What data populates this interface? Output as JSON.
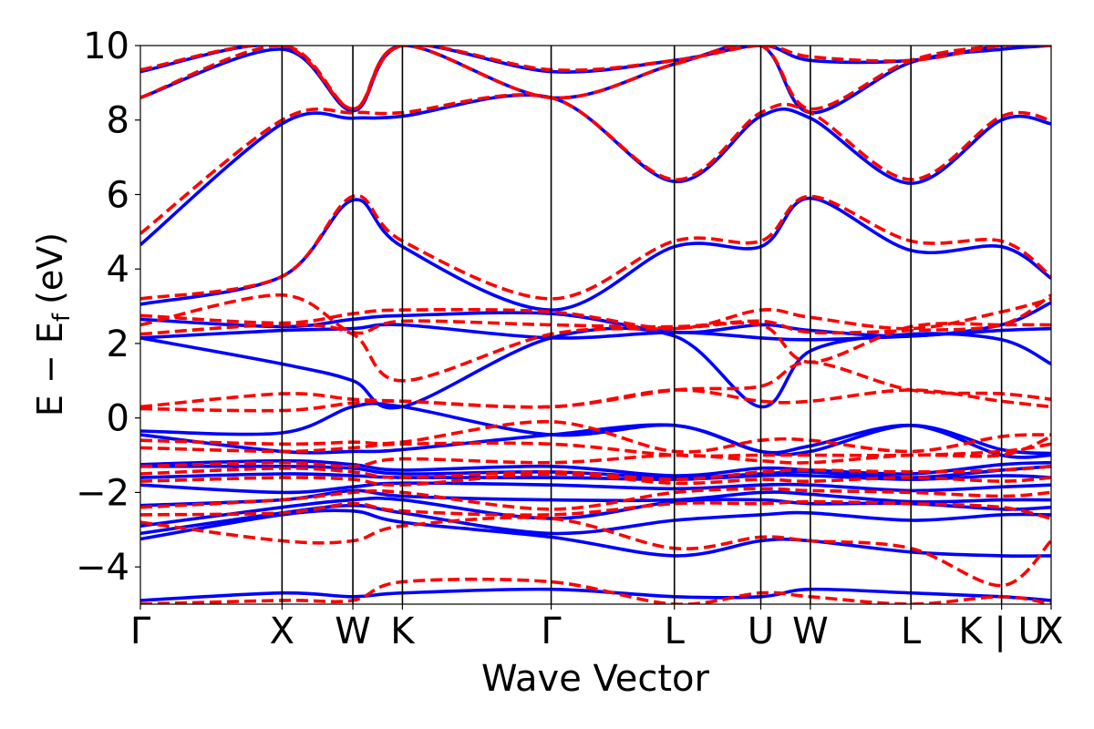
{
  "chart_data": {
    "type": "line",
    "title": "",
    "xlabel": "Wave Vector",
    "ylabel_main": "E − E",
    "ylabel_sub": "f",
    "ylabel_unit": "(eV)",
    "ylim": [
      -5,
      10
    ],
    "yticks": [
      -4,
      -2,
      0,
      2,
      4,
      6,
      8,
      10
    ],
    "ytick_labels": [
      "−4",
      "−2",
      "0",
      "2",
      "4",
      "6",
      "8",
      "10"
    ],
    "xlim": [
      0,
      6.43
    ],
    "kpoints": [
      {
        "label": "Γ",
        "x": 0.0
      },
      {
        "label": "X",
        "x": 1.0
      },
      {
        "label": "W",
        "x": 1.5
      },
      {
        "label": "K",
        "x": 1.85
      },
      {
        "label": "Γ",
        "x": 2.9
      },
      {
        "label": "L",
        "x": 3.77
      },
      {
        "label": "U",
        "x": 4.38
      },
      {
        "label": "W",
        "x": 4.73
      },
      {
        "label": "L",
        "x": 5.44
      },
      {
        "label": "K | U",
        "x": 6.08
      },
      {
        "label": "X",
        "x": 6.43
      }
    ],
    "grid": false,
    "legend": "none",
    "series": [
      {
        "style": "solid",
        "color": "#0000ff",
        "bands": [
          [
            -4.9,
            -4.7,
            -4.8,
            -4.7,
            -4.6,
            -4.8,
            -4.8,
            -4.6,
            -4.7,
            -4.8,
            -4.9
          ],
          [
            -3.25,
            -2.6,
            -2.5,
            -2.8,
            -3.2,
            -3.7,
            -3.3,
            -3.3,
            -3.6,
            -3.7,
            -3.7
          ],
          [
            -3.1,
            -2.55,
            -2.35,
            -2.55,
            -3.1,
            -2.75,
            -2.6,
            -2.55,
            -2.75,
            -2.6,
            -2.6
          ],
          [
            -2.9,
            -2.4,
            -2.2,
            -2.2,
            -2.7,
            -2.25,
            -2.2,
            -2.3,
            -2.3,
            -2.45,
            -2.4
          ],
          [
            -2.35,
            -2.2,
            -1.95,
            -2.1,
            -2.2,
            -2.2,
            -2.0,
            -2.05,
            -2.25,
            -2.2,
            -2.2
          ],
          [
            -1.8,
            -2.0,
            -1.85,
            -1.75,
            -1.8,
            -1.9,
            -1.8,
            -1.8,
            -1.95,
            -1.85,
            -1.8
          ],
          [
            -1.6,
            -1.5,
            -1.55,
            -1.6,
            -1.6,
            -1.65,
            -1.55,
            -1.55,
            -1.65,
            -1.55,
            -1.6
          ],
          [
            -1.3,
            -1.3,
            -1.35,
            -1.5,
            -1.45,
            -1.6,
            -1.5,
            -1.45,
            -1.6,
            -1.4,
            -1.3
          ],
          [
            -1.25,
            -1.15,
            -1.25,
            -1.4,
            -1.3,
            -1.55,
            -1.35,
            -1.4,
            -1.5,
            -1.25,
            -1.2
          ],
          [
            -0.45,
            -0.9,
            -0.9,
            -0.85,
            -0.45,
            -0.2,
            -0.9,
            -0.9,
            -0.2,
            -0.85,
            -0.95
          ],
          [
            -0.35,
            -0.4,
            0.3,
            0.3,
            -0.45,
            -0.2,
            -0.9,
            -0.75,
            -0.2,
            -1.0,
            -1.0
          ],
          [
            2.15,
            1.45,
            1.0,
            0.3,
            2.15,
            2.2,
            0.3,
            1.8,
            2.25,
            2.1,
            1.45
          ],
          [
            2.15,
            2.35,
            2.4,
            2.5,
            2.15,
            2.3,
            2.15,
            2.1,
            2.2,
            2.35,
            2.4
          ],
          [
            2.65,
            2.45,
            2.65,
            2.75,
            2.8,
            2.3,
            2.5,
            2.35,
            2.2,
            2.5,
            3.1
          ],
          [
            3.05,
            3.8,
            5.85,
            4.6,
            2.9,
            4.6,
            4.6,
            5.9,
            4.5,
            4.6,
            3.75
          ],
          [
            4.65,
            7.9,
            8.05,
            8.1,
            8.6,
            6.35,
            8.1,
            8.05,
            6.3,
            8.0,
            7.9
          ],
          [
            8.6,
            9.9,
            8.25,
            10.0,
            8.6,
            9.5,
            10.0,
            8.2,
            9.55,
            9.9,
            10.0
          ],
          [
            9.3,
            10.0,
            8.25,
            10.0,
            9.3,
            9.6,
            10.0,
            9.6,
            9.6,
            10.0,
            10.0
          ]
        ]
      },
      {
        "style": "dashed",
        "color": "#ff0000",
        "bands": [
          [
            -5.0,
            -4.9,
            -4.9,
            -4.4,
            -4.4,
            -5.0,
            -4.7,
            -4.8,
            -5.0,
            -4.8,
            -5.0
          ],
          [
            -2.8,
            -3.3,
            -3.3,
            -2.9,
            -2.7,
            -3.5,
            -3.2,
            -3.3,
            -3.5,
            -4.5,
            -3.3
          ],
          [
            -2.6,
            -2.55,
            -2.3,
            -2.5,
            -2.6,
            -2.3,
            -2.3,
            -2.25,
            -2.3,
            -2.4,
            -2.7
          ],
          [
            -2.4,
            -2.2,
            -2.0,
            -2.0,
            -2.45,
            -2.0,
            -1.9,
            -1.95,
            -2.0,
            -2.1,
            -2.0
          ],
          [
            -1.7,
            -1.6,
            -1.65,
            -1.8,
            -1.5,
            -1.75,
            -1.65,
            -1.7,
            -1.6,
            -1.7,
            -1.6
          ],
          [
            -1.5,
            -1.35,
            -1.45,
            -1.6,
            -1.45,
            -1.65,
            -1.45,
            -1.4,
            -1.45,
            -1.4,
            -1.3
          ],
          [
            -1.3,
            -1.2,
            -1.3,
            -1.1,
            -1.2,
            -1.0,
            -1.15,
            -1.2,
            -1.0,
            -1.0,
            -0.5
          ],
          [
            -0.8,
            -0.9,
            -0.8,
            -0.7,
            -0.7,
            -1.0,
            -1.0,
            -1.0,
            -1.0,
            -0.9,
            -0.7
          ],
          [
            -0.6,
            -0.7,
            -0.65,
            -0.65,
            -0.1,
            -0.9,
            -0.6,
            -0.6,
            -0.9,
            -0.5,
            -0.45
          ],
          [
            0.25,
            0.2,
            0.4,
            0.45,
            0.3,
            0.75,
            0.45,
            0.45,
            0.75,
            0.45,
            0.3
          ],
          [
            0.3,
            0.65,
            0.5,
            0.45,
            0.3,
            0.75,
            0.85,
            1.5,
            0.75,
            0.65,
            0.5
          ],
          [
            2.25,
            2.5,
            2.25,
            1.0,
            2.25,
            2.4,
            2.5,
            1.5,
            2.45,
            2.5,
            2.5
          ],
          [
            2.5,
            3.3,
            2.3,
            2.6,
            2.5,
            2.45,
            2.6,
            2.3,
            2.35,
            2.5,
            3.3
          ],
          [
            2.75,
            2.55,
            2.8,
            2.9,
            2.85,
            2.4,
            2.9,
            2.7,
            2.4,
            2.85,
            3.2
          ],
          [
            3.2,
            3.8,
            5.95,
            4.75,
            3.2,
            4.75,
            4.75,
            5.95,
            4.75,
            4.75,
            3.8
          ],
          [
            4.95,
            8.0,
            8.2,
            8.2,
            8.6,
            6.4,
            8.2,
            8.2,
            6.4,
            8.1,
            8.0
          ],
          [
            8.6,
            10.0,
            8.3,
            10.0,
            8.6,
            9.5,
            10.0,
            8.3,
            9.6,
            10.0,
            10.0
          ],
          [
            9.35,
            10.0,
            8.3,
            10.0,
            9.35,
            9.6,
            10.0,
            9.7,
            9.6,
            10.0,
            10.0
          ]
        ]
      }
    ]
  }
}
